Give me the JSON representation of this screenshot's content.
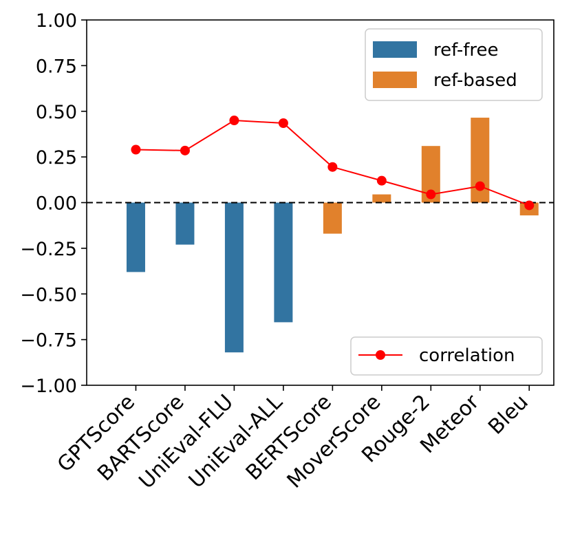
{
  "chart_data": {
    "type": "bar",
    "categories": [
      "GPTScore",
      "BARTScore",
      "UniEval-FLU",
      "UniEval-ALL",
      "BERTScore",
      "MoverScore",
      "Rouge-2",
      "Meteor",
      "Bleu"
    ],
    "series": [
      {
        "name": "ref-free",
        "color": "#3274a1",
        "values": [
          -0.38,
          -0.23,
          -0.82,
          -0.655,
          null,
          null,
          null,
          null,
          null
        ]
      },
      {
        "name": "ref-based",
        "color": "#e1812c",
        "values": [
          null,
          null,
          null,
          null,
          -0.17,
          0.045,
          0.31,
          0.465,
          -0.07
        ]
      }
    ],
    "line": {
      "name": "correlation",
      "color": "#ff0000",
      "values": [
        0.29,
        0.285,
        0.45,
        0.435,
        0.195,
        0.12,
        0.045,
        0.09,
        -0.015
      ]
    },
    "ylim": [
      -1.0,
      1.0
    ],
    "yticks": [
      "1.00",
      "0.75",
      "0.50",
      "0.25",
      "0.00",
      "−0.25",
      "−0.50",
      "−0.75",
      "−1.00"
    ],
    "ytick_values": [
      1.0,
      0.75,
      0.5,
      0.25,
      0.0,
      -0.25,
      -0.5,
      -0.75,
      -1.0
    ],
    "zero_line": "dashed",
    "legends": {
      "bars_position": "top-right",
      "line_position": "bottom-right"
    },
    "title": "",
    "xlabel": "",
    "ylabel": ""
  }
}
